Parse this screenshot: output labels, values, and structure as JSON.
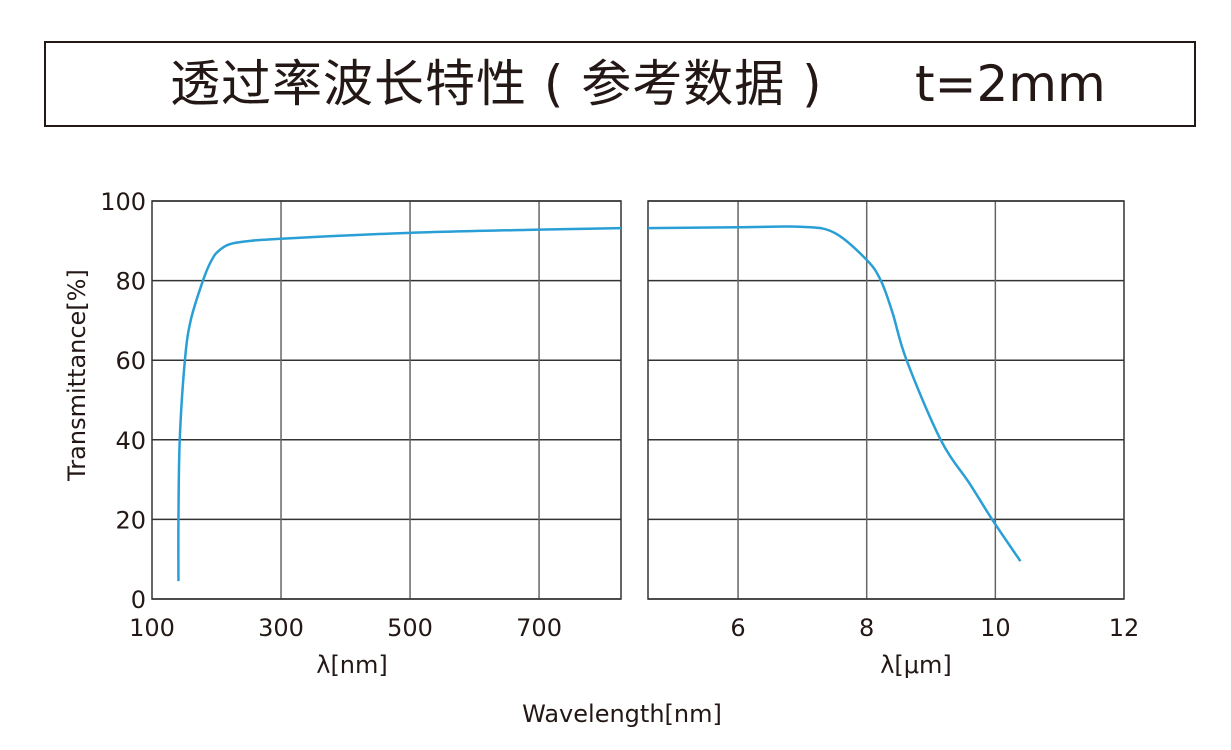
{
  "title": "透过率波长特性 ( 参考数据 )",
  "thickness": "t=2mm",
  "chart_data": [
    {
      "type": "line",
      "ylabel": "Transmittance[%]",
      "xlabel": "λ[nm]",
      "xlim": [
        100,
        827
      ],
      "ylim": [
        0,
        100
      ],
      "xticks": [
        100,
        300,
        500,
        700
      ],
      "xtick_labels": [
        "100",
        "300",
        "500",
        "700"
      ],
      "yticks": [
        0,
        20,
        40,
        60,
        80,
        100
      ],
      "ytick_labels": [
        "0",
        "20",
        "40",
        "60",
        "80",
        "100"
      ],
      "grid": true,
      "color": "#2a9fd6",
      "x": [
        141,
        141,
        143,
        151,
        160,
        179,
        192,
        205,
        230,
        300,
        500,
        700,
        827
      ],
      "y": [
        4.5,
        20,
        40,
        60,
        70,
        80,
        85,
        87.7,
        89.5,
        90.5,
        92,
        92.8,
        93.2
      ]
    },
    {
      "type": "line",
      "xlabel": "λ[μm]",
      "xlim": [
        4.6,
        12
      ],
      "ylim": [
        0,
        100
      ],
      "xticks": [
        6,
        8,
        10,
        12
      ],
      "xtick_labels": [
        "6",
        "8",
        "10",
        "12"
      ],
      "grid": true,
      "color": "#2a9fd6",
      "x": [
        4.6,
        6,
        7,
        7.5,
        8,
        8.22,
        8.4,
        8.62,
        9.15,
        9.6,
        9.95,
        10.39
      ],
      "y": [
        93.2,
        93.4,
        93.5,
        92,
        85.2,
        80,
        72,
        60,
        40,
        29,
        20,
        9.5
      ]
    }
  ],
  "shared_xlabel": "Wavelength[nm]"
}
